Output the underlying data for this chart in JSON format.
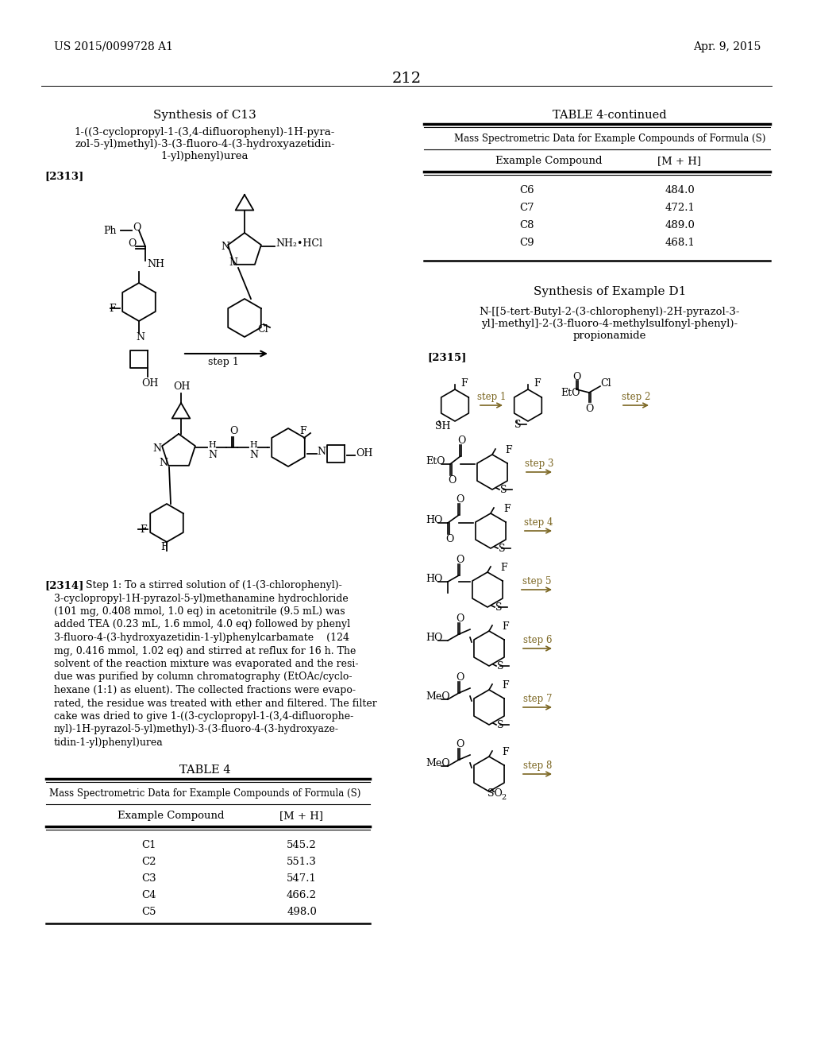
{
  "page_number": "212",
  "header_left": "US 2015/0099728 A1",
  "header_right": "Apr. 9, 2015",
  "bg": "#ffffff",
  "tc": "#000000",
  "synth_c13_title": "Synthesis of C13",
  "synth_c13_name_line1": "1-((3-cyclopropyl-1-(3,4-difluorophenyl)-1H-pyra-",
  "synth_c13_name_line2": "zol-5-yl)methyl)-3-(3-fluoro-4-(3-hydroxyazetidin-",
  "synth_c13_name_line3": "1-yl)phenyl)urea",
  "bracket_2313": "[2313]",
  "step1_label": "step 1",
  "bracket_2314": "[2314]",
  "para_2314_lines": [
    "Step 1: To a stirred solution of (1-(3-chlorophenyl)-",
    "3-cyclopropyl-1H-pyrazol-5-yl)methanamine hydrochloride",
    "(101 mg, 0.408 mmol, 1.0 eq) in acetonitrile (9.5 mL) was",
    "added TEA (0.23 mL, 1.6 mmol, 4.0 eq) followed by phenyl",
    "3-fluoro-4-(3-hydroxyazetidin-1-yl)phenylcarbamate    (124",
    "mg, 0.416 mmol, 1.02 eq) and stirred at reflux for 16 h. The",
    "solvent of the reaction mixture was evaporated and the resi-",
    "due was purified by column chromatography (EtOAc/cyclo-",
    "hexane (1:1) as eluent). The collected fractions were evapo-",
    "rated, the residue was treated with ether and filtered. The filter",
    "cake was dried to give 1-((3-cyclopropyl-1-(3,4-difluorophe-",
    "nyl)-1H-pyrazol-5-yl)methyl)-3-(3-fluoro-4-(3-hydroxyaze-",
    "tidin-1-yl)phenyl)urea"
  ],
  "table4_title": "TABLE 4",
  "table4_subtitle": "Mass Spectrometric Data for Example Compounds of Formula (S)",
  "table4_col1": "Example Compound",
  "table4_col2": "[M + H]",
  "table4_rows": [
    [
      "C1",
      "545.2"
    ],
    [
      "C2",
      "551.3"
    ],
    [
      "C3",
      "547.1"
    ],
    [
      "C4",
      "466.2"
    ],
    [
      "C5",
      "498.0"
    ]
  ],
  "table4c_title": "TABLE 4-continued",
  "table4c_subtitle": "Mass Spectrometric Data for Example Compounds of Formula (S)",
  "table4c_col1": "Example Compound",
  "table4c_col2": "[M + H]",
  "table4c_rows": [
    [
      "C6",
      "484.0"
    ],
    [
      "C7",
      "472.1"
    ],
    [
      "C8",
      "489.0"
    ],
    [
      "C9",
      "468.1"
    ]
  ],
  "synth_d1_title": "Synthesis of Example D1",
  "synth_d1_name_line1": "N-[[5-tert-Butyl-2-(3-chlorophenyl)-2H-pyrazol-3-",
  "synth_d1_name_line2": "yl]-methyl]-2-(3-fluoro-4-methylsulfonyl-phenyl)-",
  "synth_d1_name_line3": "propionamide",
  "bracket_2315": "[2315]",
  "step_labels": [
    "step 1",
    "step 2",
    "step 3",
    "step 4",
    "step 5",
    "step 6",
    "step 7",
    "step 8"
  ],
  "arrow_color": "#7a6520"
}
